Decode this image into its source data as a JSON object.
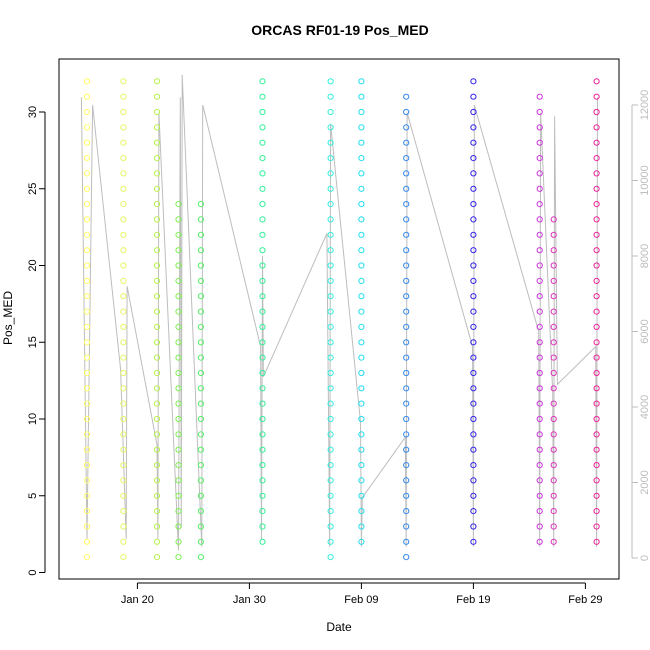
{
  "chart_data": {
    "type": "scatter",
    "title": "ORCAS RF01-19 Pos_MED",
    "xlabel": "Date",
    "ylabel": "Pos_MED",
    "x_ticks": [
      {
        "date": "2016-01-20",
        "label": "Jan 20"
      },
      {
        "date": "2016-01-30",
        "label": "Jan 30"
      },
      {
        "date": "2016-02-09",
        "label": "Feb 09"
      },
      {
        "date": "2016-02-19",
        "label": "Feb 19"
      },
      {
        "date": "2016-02-29",
        "label": "Feb 29"
      }
    ],
    "y_left": {
      "range": [
        0,
        32
      ],
      "ticks": [
        0,
        5,
        10,
        15,
        20,
        25,
        30
      ]
    },
    "y_right": {
      "ticks": [
        0,
        2000,
        4000,
        6000,
        8000,
        10000,
        12000
      ],
      "color": "#bdbdbd"
    },
    "flights": [
      {
        "date": "2016-01-15T12:00",
        "pos_min": 1,
        "pos_max": 32,
        "color": "#ffff66"
      },
      {
        "date": "2016-01-18T18:00",
        "pos_min": 1,
        "pos_max": 32,
        "color": "#e6f566"
      },
      {
        "date": "2016-01-21T18:00",
        "pos_min": 1,
        "pos_max": 32,
        "color": "#b8f04d"
      },
      {
        "date": "2016-01-23T16:00",
        "pos_min": 1,
        "pos_max": 24,
        "color": "#80ee55"
      },
      {
        "date": "2016-01-25T16:00",
        "pos_min": 1,
        "pos_max": 24,
        "color": "#55ee66"
      },
      {
        "date": "2016-01-31T04:00",
        "pos_min": 2,
        "pos_max": 32,
        "color": "#33ee99"
      },
      {
        "date": "2016-02-06T06:00",
        "pos_min": 1,
        "pos_max": 32,
        "color": "#33eedd"
      },
      {
        "date": "2016-02-09T00:00",
        "pos_min": 2,
        "pos_max": 32,
        "color": "#22ddee"
      },
      {
        "date": "2016-02-13T00:00",
        "pos_min": 1,
        "pos_max": 31,
        "color": "#3388ee"
      },
      {
        "date": "2016-02-19T00:00",
        "pos_min": 2,
        "pos_max": 32,
        "color": "#3322ee"
      },
      {
        "date": "2016-02-24T22:00",
        "pos_min": 2,
        "pos_max": 31,
        "color": "#cc33dd"
      },
      {
        "date": "2016-02-26T04:00",
        "pos_min": 2,
        "pos_max": 23,
        "color": "#dd33bb"
      },
      {
        "date": "2016-03-01T00:00",
        "pos_min": 2,
        "pos_max": 32,
        "color": "#ee2299"
      }
    ],
    "altitude_series": {
      "color": "#bdbdbd",
      "points": [
        [
          "2016-01-15T00:00",
          12200
        ],
        [
          "2016-01-15T12:00",
          500
        ],
        [
          "2016-01-16T00:00",
          12000
        ],
        [
          "2016-01-18T12:00",
          5000
        ],
        [
          "2016-01-19T00:00",
          500
        ],
        [
          "2016-01-19T02:00",
          7200
        ],
        [
          "2016-01-21T18:00",
          3000
        ],
        [
          "2016-01-21T20:00",
          500
        ],
        [
          "2016-01-21T22:00",
          11800
        ],
        [
          "2016-01-23T16:00",
          200
        ],
        [
          "2016-01-23T20:00",
          12200
        ],
        [
          "2016-01-23T22:00",
          800
        ],
        [
          "2016-01-24T00:00",
          12800
        ],
        [
          "2016-01-25T18:00",
          300
        ],
        [
          "2016-01-25T20:00",
          12000
        ],
        [
          "2016-01-26T00:00",
          11800
        ],
        [
          "2016-01-31T00:00",
          5600
        ],
        [
          "2016-01-31T02:00",
          500
        ],
        [
          "2016-01-31T04:00",
          8000
        ],
        [
          "2016-01-31T06:00",
          4800
        ],
        [
          "2016-02-05T22:00",
          8600
        ],
        [
          "2016-02-06T04:00",
          300
        ],
        [
          "2016-02-06T06:00",
          11500
        ],
        [
          "2016-02-08T22:00",
          3600
        ],
        [
          "2016-02-09T00:00",
          300
        ],
        [
          "2016-02-09T02:00",
          1600
        ],
        [
          "2016-02-12T22:00",
          3200
        ],
        [
          "2016-02-13T00:00",
          300
        ],
        [
          "2016-02-13T02:00",
          11800
        ],
        [
          "2016-02-18T22:00",
          5600
        ],
        [
          "2016-02-19T00:00",
          300
        ],
        [
          "2016-02-19T02:00",
          12000
        ],
        [
          "2016-02-24T20:00",
          6000
        ],
        [
          "2016-02-24T22:00",
          300
        ],
        [
          "2016-02-25T00:00",
          11800
        ],
        [
          "2016-02-26T02:00",
          4400
        ],
        [
          "2016-02-26T04:00",
          300
        ],
        [
          "2016-02-26T06:00",
          11700
        ],
        [
          "2016-02-26T12:00",
          4600
        ],
        [
          "2016-02-29T22:00",
          5600
        ],
        [
          "2016-03-01T00:00",
          300
        ],
        [
          "2016-03-01T02:00",
          12200
        ]
      ]
    }
  }
}
